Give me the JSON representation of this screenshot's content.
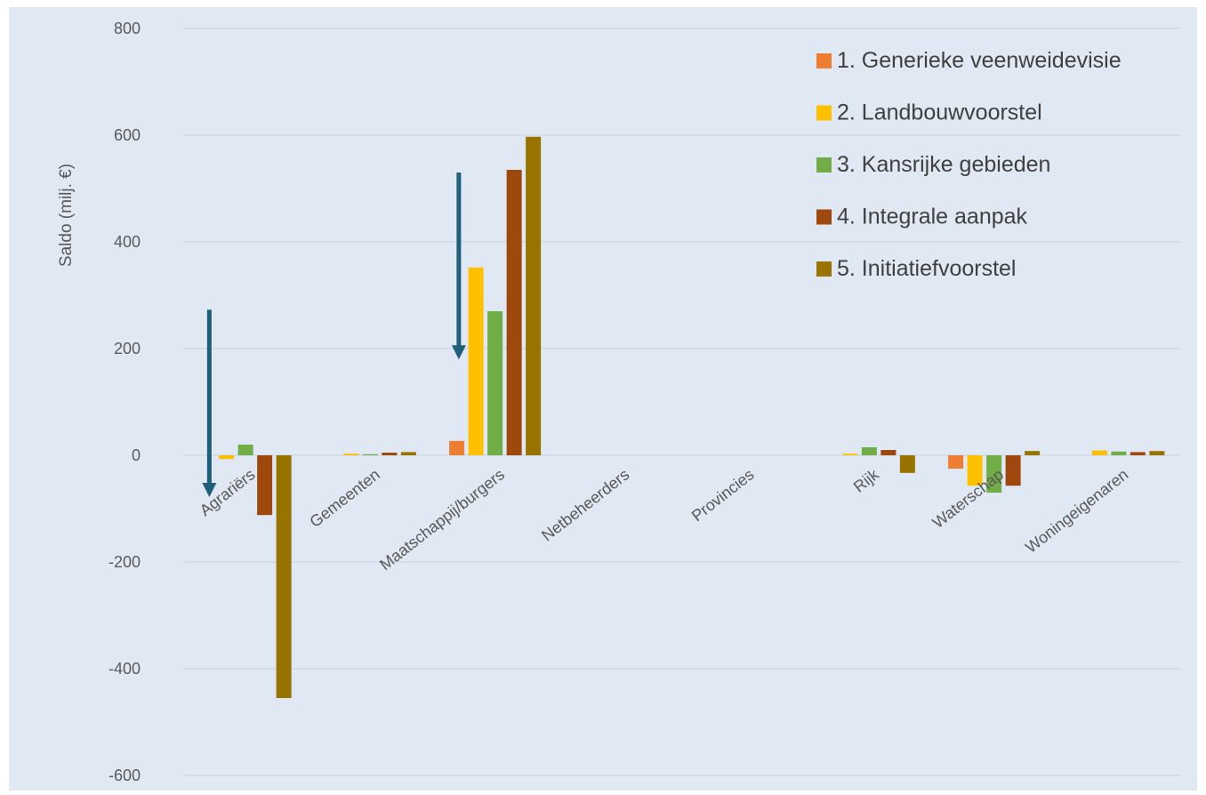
{
  "chart_data": {
    "type": "bar",
    "title": "",
    "xlabel": "",
    "ylabel": "Saldo (milj. €)",
    "ylim": [
      -600,
      800
    ],
    "yticks": [
      "800",
      "600",
      "400",
      "200",
      "0",
      "-200",
      "-400",
      "-600"
    ],
    "grid": true,
    "legend_position": "top-right",
    "categories": [
      "Agrariërs",
      "Gemeenten",
      "Maatschappij/burgers",
      "Netbeheerders",
      "Provincies",
      "Rijk",
      "Waterschap",
      "Woningeigenaren"
    ],
    "series": [
      {
        "name": "1. Generieke veenweidevisie",
        "color": "#ed7d31",
        "values": [
          0,
          0,
          27,
          0,
          0,
          0,
          -25,
          0
        ]
      },
      {
        "name": "2. Landbouwvoorstel",
        "color": "#ffc000",
        "values": [
          -7,
          3,
          352,
          0,
          0,
          3,
          -57,
          9
        ]
      },
      {
        "name": "3. Kansrijke gebieden",
        "color": "#70ad47",
        "values": [
          20,
          2,
          270,
          0,
          0,
          15,
          -70,
          7
        ]
      },
      {
        "name": "4. Integrale aanpak",
        "color": "#9e480e",
        "values": [
          -112,
          5,
          535,
          0,
          0,
          10,
          -57,
          6
        ]
      },
      {
        "name": "5. Initiatiefvoorstel",
        "color": "#997300",
        "values": [
          -455,
          6,
          597,
          0,
          0,
          -33,
          8,
          8
        ]
      }
    ],
    "annotations": [
      {
        "type": "arrow",
        "category": "Agrariërs",
        "from": 273,
        "to": -75,
        "color": "#1f5f79"
      },
      {
        "type": "arrow",
        "category": "Maatschappij/burgers",
        "from": 530,
        "to": 183,
        "color": "#1f5f79"
      }
    ]
  }
}
